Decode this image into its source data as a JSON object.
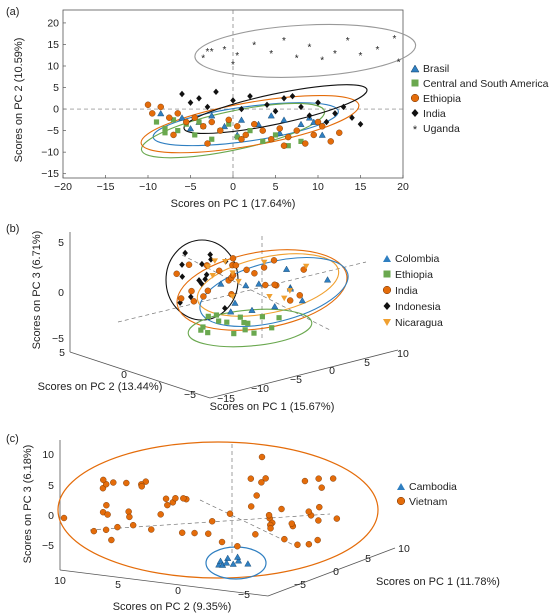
{
  "chart_data": [
    {
      "type": "scatter",
      "panel_label": "(a)",
      "xlabel": "Scores on PC 1 (17.64%)",
      "ylabel": "Scores on PC 2 (10.59%)",
      "xlim": [
        -20,
        20
      ],
      "ylim": [
        -16,
        23
      ],
      "xticks": [
        -20,
        -15,
        -10,
        -5,
        0,
        5,
        10,
        15,
        20
      ],
      "yticks": [
        -15,
        -10,
        -5,
        0,
        5,
        10,
        15,
        20
      ],
      "grid": false,
      "legend_position": "right",
      "series": [
        {
          "name": "Brasil",
          "marker": "triangle",
          "color": "#2f7fc1",
          "x": [
            -8.5,
            -6,
            -4,
            -2.5,
            -1,
            1,
            3,
            4.5,
            6,
            8,
            9.5,
            10.5,
            -5,
            0.5,
            5.5,
            9
          ],
          "y": [
            -1,
            -2,
            -3,
            -1.5,
            -4,
            -2.5,
            -3.5,
            -1.5,
            -2.5,
            -3.5,
            -3,
            -6,
            -4.5,
            -6,
            -5.5,
            -2
          ],
          "ellipse": {
            "cx": 1.5,
            "cy": -3.5,
            "rx": 11,
            "ry": 4,
            "angle": -8
          }
        },
        {
          "name": "Central and South America",
          "marker": "square",
          "color": "#6aa84f",
          "x": [
            -9,
            -8,
            -7,
            -6.5,
            -5.5,
            -4.5,
            -3.5,
            -2.5,
            -1.5,
            -0.5,
            0.5,
            2,
            3.5,
            5,
            6.5,
            8,
            -8,
            -4
          ],
          "y": [
            -3,
            -4.5,
            -2.5,
            -5,
            -3.5,
            -6,
            -4,
            -7,
            -5,
            -3.5,
            -6.5,
            -5,
            -7.5,
            -6,
            -8.5,
            -7.5,
            -5.5,
            -3
          ],
          "ellipse": {
            "cx": 0,
            "cy": -5,
            "rx": 11,
            "ry": 4.5,
            "angle": -12
          }
        },
        {
          "name": "Ethiopia",
          "marker": "circle",
          "color": "#e46c0a",
          "x": [
            -10,
            -9.5,
            -8.5,
            -7.5,
            -6.5,
            -5.5,
            -4.5,
            -3.5,
            -2.5,
            -1.5,
            -0.5,
            0.5,
            1.5,
            2.5,
            3.5,
            4.5,
            5.5,
            6.5,
            7.5,
            8.5,
            9.5,
            10.5,
            11.5,
            12.5,
            -7,
            -3,
            1,
            6,
            10
          ],
          "y": [
            1,
            -1,
            0.5,
            -2,
            -1,
            -3,
            -2,
            -4,
            -3,
            -5,
            -2.5,
            -4,
            -6,
            -3.5,
            -5,
            -7,
            -4.5,
            -6.5,
            -5,
            -8,
            -6,
            -4,
            -7.5,
            -5.5,
            -6,
            -8,
            -7,
            -8.5,
            -3
          ],
          "ellipse": {
            "cx": 2,
            "cy": -3.5,
            "rx": 13,
            "ry": 5,
            "angle": -10
          }
        },
        {
          "name": "India",
          "marker": "diamond",
          "color": "#111111",
          "x": [
            -6,
            -4,
            -2,
            0,
            2,
            4,
            6,
            8,
            10,
            12,
            14,
            -3,
            1,
            5,
            9,
            13,
            15,
            11,
            -5,
            7
          ],
          "y": [
            3.5,
            2.5,
            4,
            2,
            3,
            1,
            2.5,
            0.5,
            1.5,
            -1,
            -2,
            0.5,
            0,
            -0.5,
            -1.5,
            0.5,
            -3.5,
            -3,
            1.5,
            3
          ],
          "ellipse": {
            "cx": 5,
            "cy": 0,
            "rx": 11,
            "ry": 3.5,
            "angle": -12
          }
        },
        {
          "name": "Uganda",
          "marker": "star",
          "color": "#333333",
          "x": [
            -3.5,
            -2.5,
            -1,
            0.5,
            2.5,
            4.5,
            6,
            7.5,
            9,
            10.5,
            12,
            13.5,
            15,
            17,
            19,
            19.5,
            -3,
            0
          ],
          "y": [
            12,
            13.5,
            14,
            12.5,
            15,
            13,
            16,
            12,
            14.5,
            11.5,
            13,
            16,
            12.5,
            14,
            16.5,
            11,
            13.5,
            10.5
          ],
          "ellipse": {
            "cx": 8.5,
            "cy": 13.5,
            "rx": 13,
            "ry": 6,
            "angle": -3
          }
        }
      ]
    },
    {
      "type": "scatter3d",
      "panel_label": "(b)",
      "xlabel": "Scores on PC 1 (15.67%)",
      "ylabel": "Scores on PC 2 (13.44%)",
      "zlabel": "Scores on PC 3 (6.71%)",
      "xlim": [
        -15,
        10
      ],
      "ylim": [
        -5,
        5
      ],
      "zlim": [
        -5,
        5
      ],
      "xticks": [
        -15,
        -10,
        -5,
        0,
        5,
        10
      ],
      "yticks": [
        5,
        0,
        -5
      ],
      "zticks": [
        -5,
        0,
        5
      ],
      "legend_position": "right",
      "series": [
        {
          "name": "Colombia",
          "marker": "triangle",
          "color": "#2f7fc1"
        },
        {
          "name": "Ethiopia",
          "marker": "square",
          "color": "#6aa84f"
        },
        {
          "name": "India",
          "marker": "circle",
          "color": "#e46c0a"
        },
        {
          "name": "Indonesia",
          "marker": "diamond",
          "color": "#111111"
        },
        {
          "name": "Nicaragua",
          "marker": "triangle-down",
          "color": "#f0a030"
        }
      ]
    },
    {
      "type": "scatter3d",
      "panel_label": "(c)",
      "xlabel": "Scores on PC 1 (11.78%)",
      "ylabel": "Scores on PC 2 (9.35%)",
      "zlabel": "Scores on PC 3 (6.18%)",
      "xlim": [
        -5,
        10
      ],
      "ylim": [
        -5,
        10
      ],
      "zlim": [
        -5,
        10
      ],
      "xticks": [
        -5,
        0,
        5,
        10
      ],
      "yticks": [
        10,
        5,
        0,
        -5
      ],
      "zticks": [
        -5,
        0,
        5,
        10
      ],
      "legend_position": "right",
      "series": [
        {
          "name": "Cambodia",
          "marker": "triangle",
          "color": "#2f7fc1"
        },
        {
          "name": "Vietnam",
          "marker": "circle",
          "color": "#e46c0a"
        }
      ]
    }
  ]
}
